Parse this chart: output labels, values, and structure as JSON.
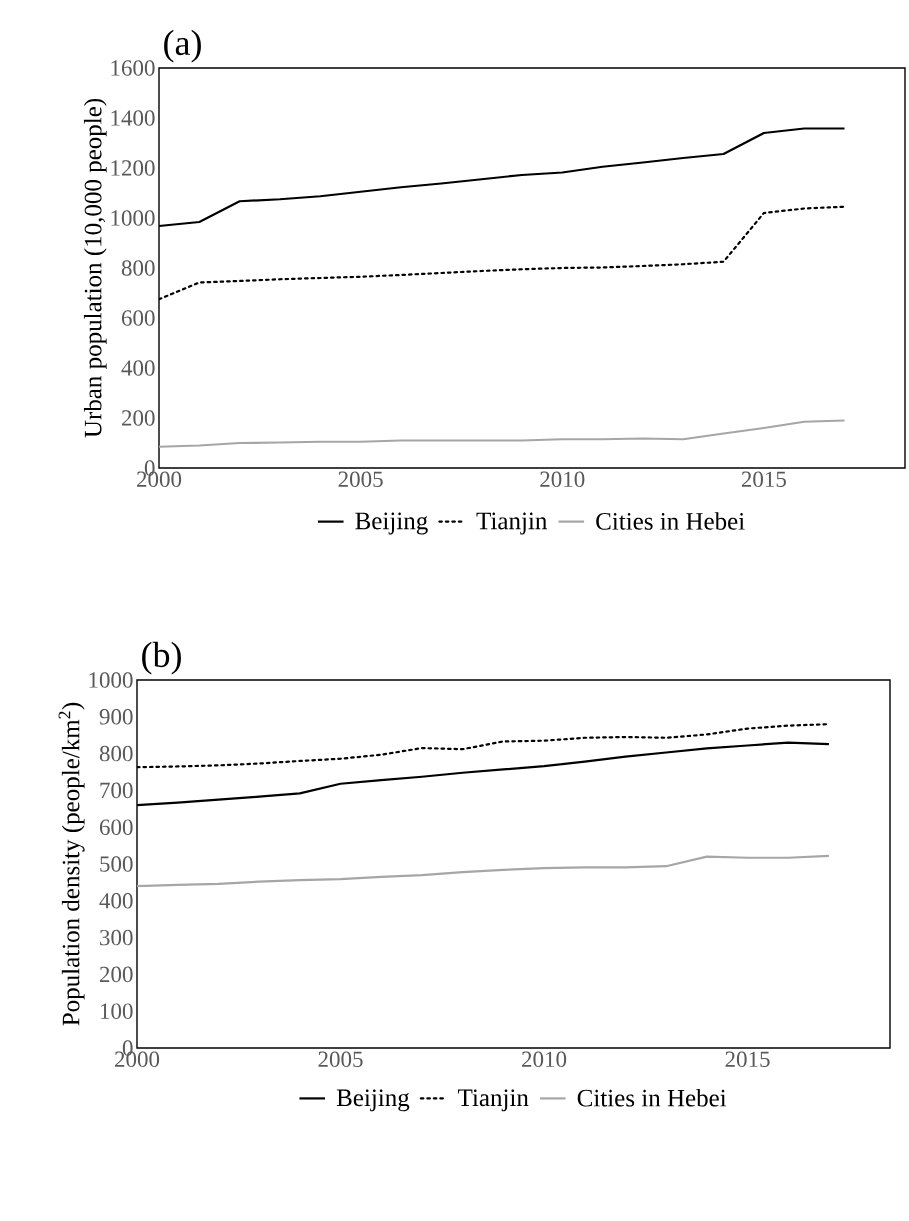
{
  "chart_data": [
    {
      "type": "line",
      "title": "(a)",
      "ylabel": "Urban population (10,000 people)",
      "x": [
        2000,
        2001,
        2002,
        2003,
        2004,
        2005,
        2006,
        2007,
        2008,
        2009,
        2010,
        2011,
        2012,
        2013,
        2014,
        2015,
        2016,
        2017
      ],
      "series": [
        {
          "name": "Beijing",
          "color": "#000000",
          "line_style": "solid",
          "values": [
            968,
            984,
            1067,
            1075,
            1087,
            1105,
            1123,
            1138,
            1155,
            1172,
            1182,
            1205,
            1222,
            1240,
            1256,
            1340,
            1358,
            1358
          ]
        },
        {
          "name": "Tianjin",
          "color": "#000000",
          "line_style": "dotted",
          "values": [
            675,
            742,
            748,
            755,
            760,
            765,
            772,
            780,
            788,
            795,
            800,
            802,
            808,
            815,
            825,
            1020,
            1038,
            1045
          ]
        },
        {
          "name": "Cities in Hebei",
          "color": "#a6a6a6",
          "line_style": "solid",
          "values": [
            85,
            90,
            100,
            102,
            105,
            105,
            110,
            110,
            110,
            110,
            115,
            115,
            118,
            115,
            138,
            160,
            185,
            190
          ]
        }
      ],
      "xlim": [
        2000,
        2018.5
      ],
      "ylim": [
        0,
        1600
      ],
      "xticks": [
        2000,
        2005,
        2010,
        2015
      ],
      "yticks": [
        0,
        200,
        400,
        600,
        800,
        1000,
        1200,
        1400,
        1600
      ],
      "grid": false,
      "legend": "bottom",
      "marker": "none"
    },
    {
      "type": "line",
      "title": "(b)",
      "ylabel": "Population density (people/km$^{2}$)",
      "x": [
        2000,
        2001,
        2002,
        2003,
        2004,
        2005,
        2006,
        2007,
        2008,
        2009,
        2010,
        2011,
        2012,
        2013,
        2014,
        2015,
        2016,
        2017
      ],
      "series": [
        {
          "name": "Beijing",
          "color": "#000000",
          "line_style": "solid",
          "values": [
            660,
            667,
            675,
            683,
            692,
            718,
            728,
            737,
            748,
            757,
            766,
            778,
            792,
            803,
            814,
            822,
            830,
            826
          ]
        },
        {
          "name": "Tianjin",
          "color": "#000000",
          "line_style": "dotted",
          "values": [
            763,
            765,
            768,
            773,
            780,
            786,
            797,
            815,
            812,
            833,
            835,
            843,
            845,
            843,
            852,
            868,
            876,
            880
          ]
        },
        {
          "name": "Cities in Hebei",
          "color": "#a6a6a6",
          "line_style": "solid",
          "values": [
            440,
            443,
            446,
            452,
            456,
            459,
            465,
            470,
            478,
            484,
            489,
            491,
            491,
            494,
            520,
            517,
            517,
            522
          ]
        }
      ],
      "xlim": [
        2000,
        2018.5
      ],
      "ylim": [
        0,
        1000
      ],
      "xticks": [
        2000,
        2005,
        2010,
        2015
      ],
      "yticks": [
        0,
        100,
        200,
        300,
        400,
        500,
        600,
        700,
        800,
        900,
        1000
      ],
      "grid": false,
      "legend": "bottom",
      "marker": "none"
    }
  ]
}
